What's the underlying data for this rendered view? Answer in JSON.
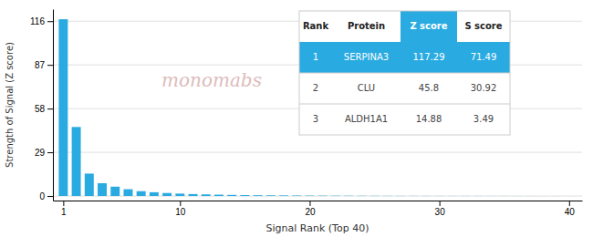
{
  "chart_data": {
    "type": "bar",
    "x": [
      1,
      2,
      3,
      4,
      5,
      6,
      7,
      8,
      9,
      10,
      11,
      12,
      13,
      14,
      15,
      16,
      17,
      18,
      19,
      20,
      21,
      22,
      23,
      24,
      25,
      26,
      27,
      28,
      29,
      30,
      31,
      32,
      33,
      34,
      35,
      36,
      37,
      38,
      39,
      40
    ],
    "values": [
      117.29,
      45.8,
      14.88,
      8.5,
      6.2,
      4.5,
      3.2,
      2.5,
      2.0,
      1.6,
      1.3,
      1.1,
      0.9,
      0.75,
      0.62,
      0.52,
      0.44,
      0.38,
      0.32,
      0.27,
      0.23,
      0.2,
      0.17,
      0.15,
      0.13,
      0.11,
      0.1,
      0.09,
      0.08,
      0.07,
      0.06,
      0.055,
      0.05,
      0.045,
      0.04,
      0.035,
      0.03,
      0.025,
      0.02,
      0.015
    ],
    "color": "#29ABE2",
    "xlabel": "Signal Rank (Top 40)",
    "ylabel": "Strength of Signal (Z score)",
    "xlim": [
      0.2,
      41
    ],
    "xticks": [
      1,
      10,
      20,
      30,
      40
    ],
    "ylim": [
      -3,
      124
    ],
    "yticks": [
      0,
      29,
      58,
      87,
      116
    ],
    "grid": true,
    "annotations": [
      {
        "text": "monomabs",
        "color": "#ddbcbc"
      }
    ],
    "table": {
      "header": [
        "Rank",
        "Protein",
        "Z score",
        "S score"
      ],
      "rows": [
        [
          "1",
          "SERPINA3",
          "117.29",
          "71.49"
        ],
        [
          "2",
          "CLU",
          "45.8",
          "30.92"
        ],
        [
          "3",
          "ALDH1A1",
          "14.88",
          "3.49"
        ]
      ]
    }
  }
}
